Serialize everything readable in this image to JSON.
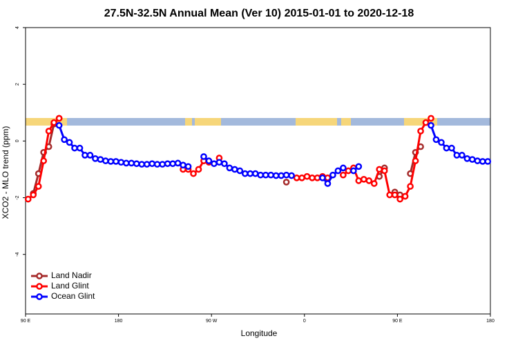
{
  "chart_data": {
    "type": "line",
    "title": "27.5N-32.5N Annual Mean (Ver 10)   2015-01-01 to 2020-12-18",
    "x_label": "Longitude",
    "y_label": "XCO2 - MLO trend (ppm)",
    "xlim": [
      90,
      540
    ],
    "xticks": [
      {
        "value": 90,
        "label": "90 E"
      },
      {
        "value": 180,
        "label": "180"
      },
      {
        "value": 270,
        "label": "90 W"
      },
      {
        "value": 360,
        "label": "0"
      },
      {
        "value": 450,
        "label": "90 E"
      },
      {
        "value": 540,
        "label": "180"
      }
    ],
    "ylim": [
      -6.1,
      4
    ],
    "yticks": [
      -4,
      -2,
      0,
      2,
      4
    ],
    "grid": false,
    "legend": "bottom-left",
    "series": [
      {
        "name": "Land Nadir",
        "color": "#a52a2a",
        "x": [
          97.5,
          102.5,
          107.5,
          112.5,
          117.5,
          122.5,
          127.5,
          342.5,
          347.5,
          432.5,
          437.5,
          442.5,
          447.5,
          452.5,
          457.5,
          462.5,
          467.5,
          472.5
        ],
        "values": [
          -1.85,
          -1.15,
          -0.4,
          -0.2,
          0.6,
          0.8,
          null,
          -1.45,
          null,
          -1.25,
          -0.95,
          null,
          -1.8,
          -1.9,
          null,
          -1.15,
          -0.4,
          -0.2
        ]
      },
      {
        "name": "Land Glint",
        "color": "#ff0000",
        "x": [
          92.5,
          97.5,
          102.5,
          107.5,
          112.5,
          117.5,
          122.5,
          127.5,
          242.5,
          247.5,
          252.5,
          257.5,
          262.5,
          267.5,
          272.5,
          277.5,
          282.5,
          352.5,
          357.5,
          362.5,
          367.5,
          372.5,
          377.5,
          382.5,
          387.5,
          397.5,
          402.5,
          407.5,
          412.5,
          417.5,
          422.5,
          427.5,
          432.5,
          437.5,
          442.5,
          447.5,
          452.5,
          457.5,
          462.5,
          467.5,
          472.5,
          477.5,
          482.5
        ],
        "values": [
          -2.05,
          -1.9,
          -1.6,
          -0.7,
          0.35,
          0.65,
          0.8,
          null,
          -1.0,
          -1.0,
          -1.15,
          -1.0,
          -0.7,
          -0.75,
          null,
          -0.6,
          null,
          -1.3,
          -1.3,
          -1.25,
          -1.3,
          -1.3,
          -1.25,
          -1.3,
          null,
          -1.2,
          -1.05,
          -0.95,
          -1.4,
          -1.35,
          -1.4,
          -1.5,
          -1.0,
          -1.05,
          -1.9,
          -1.9,
          -2.05,
          -1.95,
          -1.6,
          -0.7,
          0.35,
          0.65,
          0.8
        ]
      },
      {
        "name": "Ocean Glint",
        "color": "#0000ff",
        "x": [
          122.5,
          127.5,
          132.5,
          137.5,
          142.5,
          147.5,
          152.5,
          157.5,
          162.5,
          167.5,
          172.5,
          177.5,
          182.5,
          187.5,
          192.5,
          197.5,
          202.5,
          207.5,
          212.5,
          217.5,
          222.5,
          227.5,
          232.5,
          237.5,
          242.5,
          247.5,
          252.5,
          257.5,
          262.5,
          267.5,
          272.5,
          277.5,
          282.5,
          287.5,
          292.5,
          297.5,
          302.5,
          307.5,
          312.5,
          317.5,
          322.5,
          327.5,
          332.5,
          337.5,
          342.5,
          347.5,
          352.5,
          377.5,
          382.5,
          387.5,
          392.5,
          397.5,
          402.5,
          407.5,
          412.5,
          417.5,
          482.5,
          487.5,
          492.5,
          497.5,
          502.5,
          507.5,
          512.5,
          517.5,
          522.5,
          527.5,
          532.5,
          537.5
        ],
        "values": [
          0.55,
          0.05,
          -0.05,
          -0.25,
          -0.25,
          -0.5,
          -0.5,
          -0.62,
          -0.65,
          -0.7,
          -0.72,
          -0.72,
          -0.75,
          -0.78,
          -0.78,
          -0.8,
          -0.82,
          -0.82,
          -0.8,
          -0.82,
          -0.82,
          -0.8,
          -0.8,
          -0.78,
          -0.85,
          -0.9,
          null,
          null,
          -0.55,
          -0.7,
          -0.8,
          -0.75,
          -0.8,
          -0.95,
          -1.0,
          -1.05,
          -1.15,
          -1.15,
          -1.15,
          -1.2,
          -1.2,
          -1.2,
          -1.22,
          -1.22,
          -1.2,
          -1.22,
          null,
          -1.3,
          -1.5,
          -1.2,
          -1.05,
          -0.95,
          null,
          -1.05,
          -0.9,
          null,
          0.55,
          0.05,
          -0.05,
          -0.25,
          -0.25,
          -0.5,
          -0.5,
          -0.62,
          -0.65,
          -0.7,
          -0.72,
          -0.72
        ]
      }
    ]
  }
}
